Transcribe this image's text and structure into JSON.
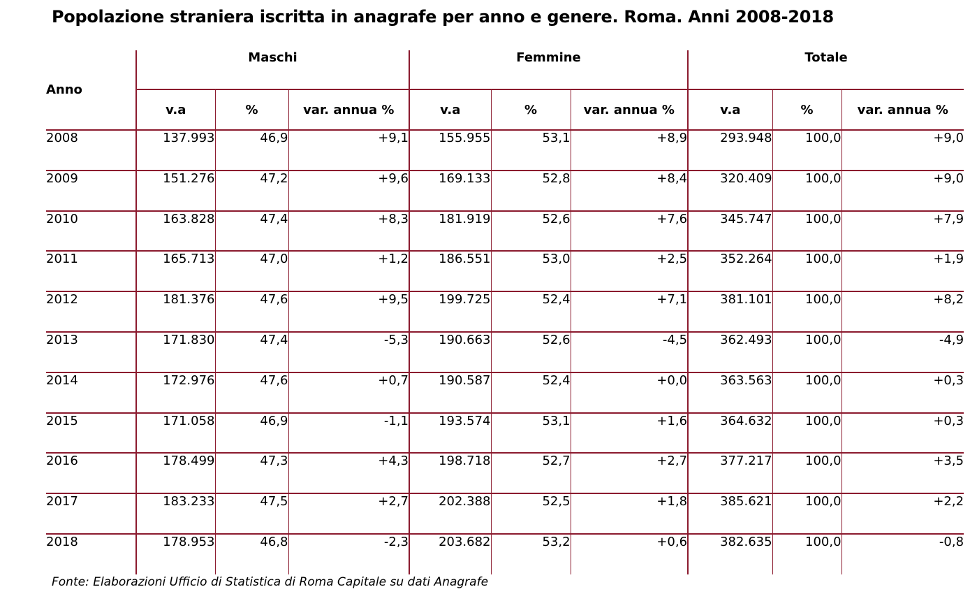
{
  "title": "Popolazione straniera iscritta in anagrafe per anno e genere. Roma. Anni 2008-2018",
  "source": "Fonte: Elaborazioni Ufficio di Statistica di Roma Capitale su dati Anagrafe",
  "colors": {
    "rule": "#8b1a2e"
  },
  "headers": {
    "year": "Anno",
    "groups": [
      "Maschi",
      "Femmine",
      "Totale"
    ],
    "sub": [
      "v.a",
      "%",
      "var. annua %"
    ]
  },
  "rows": [
    [
      "2008",
      "137.993",
      "46,9",
      "+9,1",
      "155.955",
      "53,1",
      "+8,9",
      "293.948",
      "100,0",
      "+9,0"
    ],
    [
      "2009",
      "151.276",
      "47,2",
      "+9,6",
      "169.133",
      "52,8",
      "+8,4",
      "320.409",
      "100,0",
      "+9,0"
    ],
    [
      "2010",
      "163.828",
      "47,4",
      "+8,3",
      "181.919",
      "52,6",
      "+7,6",
      "345.747",
      "100,0",
      "+7,9"
    ],
    [
      "2011",
      "165.713",
      "47,0",
      "+1,2",
      "186.551",
      "53,0",
      "+2,5",
      "352.264",
      "100,0",
      "+1,9"
    ],
    [
      "2012",
      "181.376",
      "47,6",
      "+9,5",
      "199.725",
      "52,4",
      "+7,1",
      "381.101",
      "100,0",
      "+8,2"
    ],
    [
      "2013",
      "171.830",
      "47,4",
      "-5,3",
      "190.663",
      "52,6",
      "-4,5",
      "362.493",
      "100,0",
      "-4,9"
    ],
    [
      "2014",
      "172.976",
      "47,6",
      "+0,7",
      "190.587",
      "52,4",
      "+0,0",
      "363.563",
      "100,0",
      "+0,3"
    ],
    [
      "2015",
      "171.058",
      "46,9",
      "-1,1",
      "193.574",
      "53,1",
      "+1,6",
      "364.632",
      "100,0",
      "+0,3"
    ],
    [
      "2016",
      "178.499",
      "47,3",
      "+4,3",
      "198.718",
      "52,7",
      "+2,7",
      "377.217",
      "100,0",
      "+3,5"
    ],
    [
      "2017",
      "183.233",
      "47,5",
      "+2,7",
      "202.388",
      "52,5",
      "+1,8",
      "385.621",
      "100,0",
      "+2,2"
    ],
    [
      "2018",
      "178.953",
      "46,8",
      "-2,3",
      "203.682",
      "53,2",
      "+0,6",
      "382.635",
      "100,0",
      "-0,8"
    ]
  ]
}
